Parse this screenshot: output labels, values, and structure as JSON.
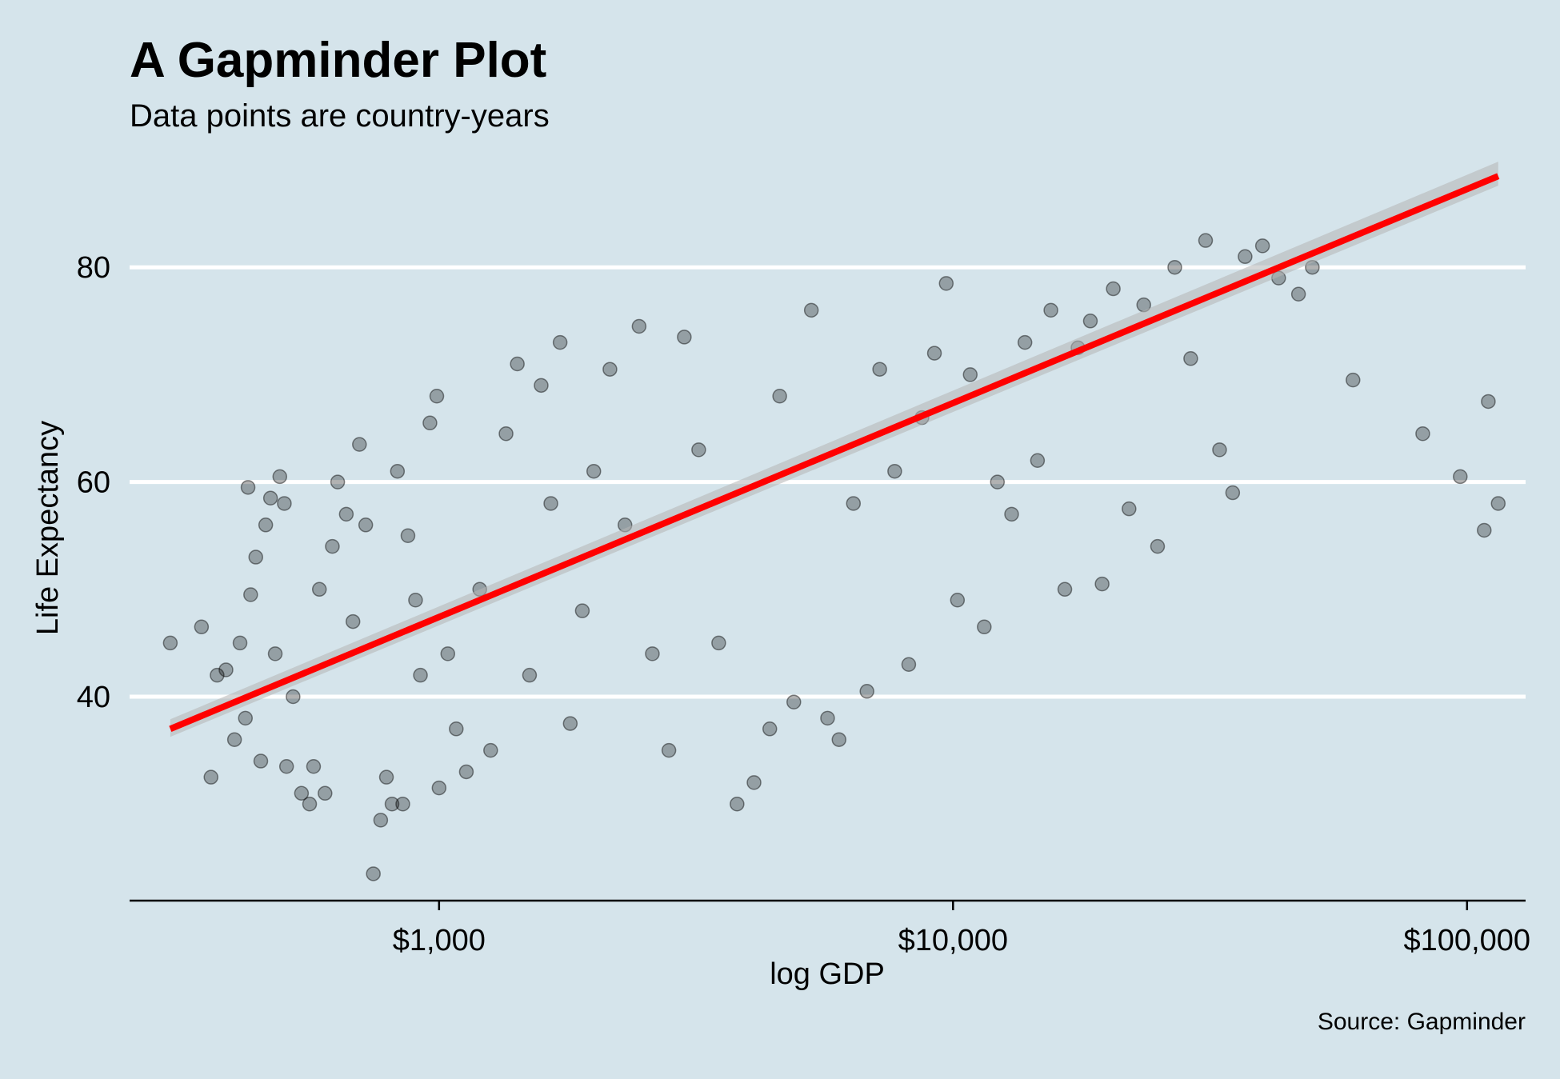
{
  "chart_data": {
    "type": "scatter",
    "title": "A Gapminder Plot",
    "subtitle": "Data points are country-years",
    "caption": "Source: Gapminder",
    "xlabel": "log GDP",
    "ylabel": "Life Expectancy",
    "x_scale": "log10",
    "xlim": [
      250,
      130000
    ],
    "ylim": [
      21,
      90
    ],
    "x_ticks": [
      1000,
      10000,
      100000
    ],
    "x_tick_labels": [
      "$1,000",
      "$10,000",
      "$100,000"
    ],
    "y_ticks": [
      40,
      60,
      80
    ],
    "y_tick_labels": [
      "40",
      "60",
      "80"
    ],
    "grid": "horizontal",
    "legend": "none",
    "point_color": "#000000",
    "point_alpha": 0.3,
    "trend": {
      "method": "lm",
      "color": "#ff0000",
      "band_color": "#b4b4b4",
      "start": {
        "x": 300,
        "y": 37
      },
      "end": {
        "x": 115000,
        "y": 88.5
      }
    },
    "points": [
      {
        "x": 300,
        "y": 45
      },
      {
        "x": 345,
        "y": 46.5
      },
      {
        "x": 360,
        "y": 32.5
      },
      {
        "x": 370,
        "y": 42
      },
      {
        "x": 385,
        "y": 42.5
      },
      {
        "x": 400,
        "y": 36
      },
      {
        "x": 410,
        "y": 45
      },
      {
        "x": 420,
        "y": 38
      },
      {
        "x": 425,
        "y": 59.5
      },
      {
        "x": 430,
        "y": 49.5
      },
      {
        "x": 440,
        "y": 53
      },
      {
        "x": 450,
        "y": 34
      },
      {
        "x": 460,
        "y": 56
      },
      {
        "x": 470,
        "y": 58.5
      },
      {
        "x": 480,
        "y": 44
      },
      {
        "x": 490,
        "y": 60.5
      },
      {
        "x": 500,
        "y": 58
      },
      {
        "x": 505,
        "y": 33.5
      },
      {
        "x": 520,
        "y": 40
      },
      {
        "x": 540,
        "y": 31
      },
      {
        "x": 560,
        "y": 30
      },
      {
        "x": 570,
        "y": 33.5
      },
      {
        "x": 585,
        "y": 50
      },
      {
        "x": 600,
        "y": 31
      },
      {
        "x": 620,
        "y": 54
      },
      {
        "x": 635,
        "y": 60
      },
      {
        "x": 660,
        "y": 57
      },
      {
        "x": 680,
        "y": 47
      },
      {
        "x": 700,
        "y": 63.5
      },
      {
        "x": 720,
        "y": 56
      },
      {
        "x": 745,
        "y": 23.5
      },
      {
        "x": 770,
        "y": 28.5
      },
      {
        "x": 790,
        "y": 32.5
      },
      {
        "x": 810,
        "y": 30
      },
      {
        "x": 830,
        "y": 61
      },
      {
        "x": 850,
        "y": 30
      },
      {
        "x": 870,
        "y": 55
      },
      {
        "x": 900,
        "y": 49
      },
      {
        "x": 920,
        "y": 42
      },
      {
        "x": 960,
        "y": 65.5
      },
      {
        "x": 990,
        "y": 68
      },
      {
        "x": 1000,
        "y": 31.5
      },
      {
        "x": 1040,
        "y": 44
      },
      {
        "x": 1080,
        "y": 37
      },
      {
        "x": 1130,
        "y": 33
      },
      {
        "x": 1200,
        "y": 50
      },
      {
        "x": 1260,
        "y": 35
      },
      {
        "x": 1350,
        "y": 64.5
      },
      {
        "x": 1420,
        "y": 71
      },
      {
        "x": 1500,
        "y": 42
      },
      {
        "x": 1580,
        "y": 69
      },
      {
        "x": 1650,
        "y": 58
      },
      {
        "x": 1720,
        "y": 73
      },
      {
        "x": 1800,
        "y": 37.5
      },
      {
        "x": 1900,
        "y": 48
      },
      {
        "x": 2000,
        "y": 61
      },
      {
        "x": 2150,
        "y": 70.5
      },
      {
        "x": 2300,
        "y": 56
      },
      {
        "x": 2450,
        "y": 74.5
      },
      {
        "x": 2600,
        "y": 44
      },
      {
        "x": 2800,
        "y": 35
      },
      {
        "x": 3000,
        "y": 73.5
      },
      {
        "x": 3200,
        "y": 63
      },
      {
        "x": 3500,
        "y": 45
      },
      {
        "x": 3800,
        "y": 30
      },
      {
        "x": 4100,
        "y": 32
      },
      {
        "x": 4400,
        "y": 37
      },
      {
        "x": 4600,
        "y": 68
      },
      {
        "x": 4900,
        "y": 39.5
      },
      {
        "x": 5300,
        "y": 76
      },
      {
        "x": 5700,
        "y": 38
      },
      {
        "x": 6000,
        "y": 36
      },
      {
        "x": 6400,
        "y": 58
      },
      {
        "x": 6800,
        "y": 40.5
      },
      {
        "x": 7200,
        "y": 70.5
      },
      {
        "x": 7700,
        "y": 61
      },
      {
        "x": 8200,
        "y": 43
      },
      {
        "x": 8700,
        "y": 66
      },
      {
        "x": 9200,
        "y": 72
      },
      {
        "x": 9700,
        "y": 78.5
      },
      {
        "x": 10200,
        "y": 49
      },
      {
        "x": 10800,
        "y": 70
      },
      {
        "x": 11500,
        "y": 46.5
      },
      {
        "x": 12200,
        "y": 60
      },
      {
        "x": 13000,
        "y": 57
      },
      {
        "x": 13800,
        "y": 73
      },
      {
        "x": 14600,
        "y": 62
      },
      {
        "x": 15500,
        "y": 76
      },
      {
        "x": 16500,
        "y": 50
      },
      {
        "x": 17500,
        "y": 72.5
      },
      {
        "x": 18500,
        "y": 75
      },
      {
        "x": 19500,
        "y": 50.5
      },
      {
        "x": 20500,
        "y": 78
      },
      {
        "x": 22000,
        "y": 57.5
      },
      {
        "x": 23500,
        "y": 76.5
      },
      {
        "x": 25000,
        "y": 54
      },
      {
        "x": 27000,
        "y": 80
      },
      {
        "x": 29000,
        "y": 71.5
      },
      {
        "x": 31000,
        "y": 82.5
      },
      {
        "x": 33000,
        "y": 63
      },
      {
        "x": 35000,
        "y": 59
      },
      {
        "x": 37000,
        "y": 81
      },
      {
        "x": 40000,
        "y": 82
      },
      {
        "x": 43000,
        "y": 79
      },
      {
        "x": 47000,
        "y": 77.5
      },
      {
        "x": 50000,
        "y": 80
      },
      {
        "x": 60000,
        "y": 69.5
      },
      {
        "x": 82000,
        "y": 64.5
      },
      {
        "x": 97000,
        "y": 60.5
      },
      {
        "x": 108000,
        "y": 55.5
      },
      {
        "x": 110000,
        "y": 67.5
      },
      {
        "x": 115000,
        "y": 58
      }
    ]
  }
}
